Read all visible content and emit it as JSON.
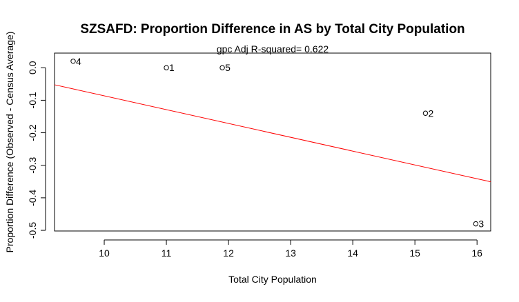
{
  "chart_data": {
    "type": "scatter",
    "title": "SZSAFD: Proportion Difference in AS by Total City Population",
    "subtitle": "gpc Adj R-squared= 0.622",
    "xlabel": "Total City Population",
    "ylabel": "Proportion Difference (Observed - Census Average)",
    "xlim": [
      9.2,
      16.22
    ],
    "ylim": [
      -0.502,
      0.045
    ],
    "x_ticks": [
      10,
      11,
      12,
      13,
      14,
      15,
      16
    ],
    "y_ticks": [
      0.0,
      -0.1,
      -0.2,
      -0.3,
      -0.4,
      -0.5
    ],
    "y_tick_labels": [
      "0.0",
      "-0.1",
      "-0.2",
      "-0.3",
      "-0.4",
      "-0.5"
    ],
    "grid": false,
    "points": [
      {
        "label": "1",
        "x": 11.0,
        "y": 0.0
      },
      {
        "label": "2",
        "x": 15.17,
        "y": -0.14
      },
      {
        "label": "3",
        "x": 15.98,
        "y": -0.48
      },
      {
        "label": "4",
        "x": 9.5,
        "y": 0.02
      },
      {
        "label": "5",
        "x": 11.9,
        "y": 0.0
      }
    ],
    "fit_line": {
      "color": "#ff0000",
      "intercept": 0.3386,
      "slope": -0.0425
    }
  }
}
